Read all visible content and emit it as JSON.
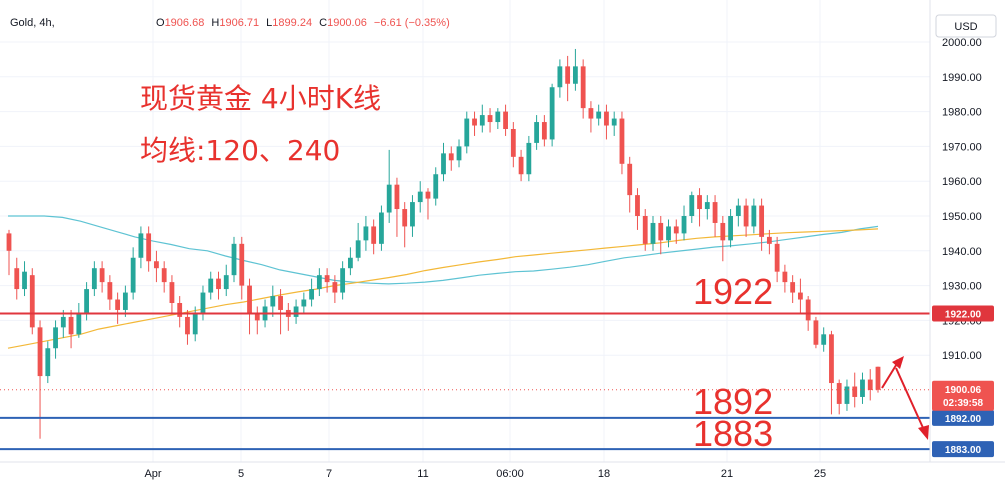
{
  "header": {
    "symbol": "Gold, 4h,",
    "open_label": "O",
    "open": "1906.68",
    "high_label": "H",
    "high": "1906.71",
    "low_label": "L",
    "low": "1899.24",
    "close_label": "C",
    "close": "1900.06",
    "change": "−6.61 (−0.35%)"
  },
  "currency_label": "USD",
  "annotations": {
    "title_line1": "现货黄金 4小时K线",
    "title_line2": "均线:120、240",
    "level_1922": "1922",
    "level_1892": "1892",
    "level_1883": "1883"
  },
  "price_tags": {
    "t1922": "1922.00",
    "t1892": "1892.00",
    "t1883": "1883.00",
    "current": "1900.06",
    "countdown": "02:39:58"
  },
  "colors": {
    "up": "#26a69a",
    "down": "#ef5350",
    "ma120": "#5ec3d3",
    "ma240": "#f3b838",
    "red_line": "#e0363d",
    "blue_line": "#2e62b5",
    "annotation": "#e8322e"
  },
  "chart_data": {
    "type": "candlestick",
    "symbol": "Gold",
    "timeframe": "4h",
    "currency": "USD",
    "y_axis": {
      "min": 1882,
      "max": 2002,
      "ticks": [
        2000,
        1990,
        1980,
        1970,
        1960,
        1950,
        1940,
        1930,
        1920,
        1910
      ]
    },
    "x_axis_labels": [
      "Apr",
      "5",
      "7",
      "11",
      "06:00",
      "18",
      "21",
      "25"
    ],
    "horizontal_levels": [
      1922,
      1892,
      1883
    ],
    "current_price": 1900.06,
    "candles": [
      [
        1945,
        1940,
        1933,
        1946
      ],
      [
        1935,
        1929,
        1926,
        1938
      ],
      [
        1929,
        1934,
        1927,
        1937
      ],
      [
        1933,
        1918,
        1916,
        1935
      ],
      [
        1918,
        1904,
        1886,
        1920
      ],
      [
        1904,
        1912,
        1902,
        1914
      ],
      [
        1912,
        1918,
        1909,
        1920
      ],
      [
        1918,
        1921,
        1915,
        1923
      ],
      [
        1921,
        1916,
        1912,
        1923
      ],
      [
        1916,
        1922,
        1915,
        1925
      ],
      [
        1922,
        1929,
        1920,
        1931
      ],
      [
        1929,
        1935,
        1927,
        1937
      ],
      [
        1935,
        1931,
        1928,
        1937
      ],
      [
        1931,
        1926,
        1923,
        1933
      ],
      [
        1926,
        1923,
        1919,
        1928
      ],
      [
        1923,
        1928,
        1921,
        1930
      ],
      [
        1928,
        1938,
        1926,
        1941
      ],
      [
        1938,
        1945,
        1935,
        1947
      ],
      [
        1945,
        1937,
        1934,
        1947
      ],
      [
        1937,
        1935,
        1931,
        1940
      ],
      [
        1935,
        1931,
        1928,
        1937
      ],
      [
        1931,
        1925,
        1922,
        1933
      ],
      [
        1925,
        1921,
        1918,
        1927
      ],
      [
        1921,
        1916,
        1913,
        1923
      ],
      [
        1916,
        1922,
        1914,
        1924
      ],
      [
        1922,
        1928,
        1920,
        1930
      ],
      [
        1928,
        1932,
        1926,
        1934
      ],
      [
        1932,
        1929,
        1926,
        1934
      ],
      [
        1929,
        1933,
        1927,
        1936
      ],
      [
        1933,
        1942,
        1931,
        1944
      ],
      [
        1942,
        1930,
        1926,
        1944
      ],
      [
        1930,
        1922,
        1916,
        1932
      ],
      [
        1922,
        1920,
        1916,
        1924
      ],
      [
        1920,
        1924,
        1918,
        1926
      ],
      [
        1924,
        1927,
        1921,
        1930
      ],
      [
        1927,
        1923,
        1916,
        1929
      ],
      [
        1923,
        1921,
        1917,
        1925
      ],
      [
        1921,
        1924,
        1919,
        1926
      ],
      [
        1924,
        1926,
        1922,
        1928
      ],
      [
        1926,
        1929,
        1924,
        1932
      ],
      [
        1929,
        1933,
        1927,
        1935
      ],
      [
        1933,
        1931,
        1928,
        1935
      ],
      [
        1931,
        1928,
        1925,
        1933
      ],
      [
        1928,
        1935,
        1926,
        1937
      ],
      [
        1935,
        1938,
        1933,
        1941
      ],
      [
        1938,
        1943,
        1937,
        1948
      ],
      [
        1943,
        1947,
        1940,
        1950
      ],
      [
        1947,
        1942,
        1939,
        1949
      ],
      [
        1942,
        1951,
        1940,
        1953
      ],
      [
        1951,
        1959,
        1948,
        1969
      ],
      [
        1959,
        1952,
        1944,
        1961
      ],
      [
        1952,
        1947,
        1941,
        1954
      ],
      [
        1947,
        1954,
        1944,
        1956
      ],
      [
        1954,
        1957,
        1951,
        1960
      ],
      [
        1957,
        1955,
        1949,
        1958
      ],
      [
        1955,
        1962,
        1953,
        1964
      ],
      [
        1962,
        1968,
        1960,
        1971
      ],
      [
        1968,
        1966,
        1963,
        1970
      ],
      [
        1966,
        1970,
        1964,
        1972
      ],
      [
        1970,
        1978,
        1968,
        1980
      ],
      [
        1978,
        1976,
        1973,
        1980
      ],
      [
        1976,
        1979,
        1974,
        1982
      ],
      [
        1979,
        1977,
        1974,
        1981
      ],
      [
        1977,
        1980,
        1975,
        1981
      ],
      [
        1980,
        1975,
        1973,
        1982
      ],
      [
        1975,
        1967,
        1964,
        1977
      ],
      [
        1967,
        1962,
        1960,
        1969
      ],
      [
        1962,
        1971,
        1960,
        1973
      ],
      [
        1971,
        1977,
        1969,
        1979
      ],
      [
        1977,
        1972,
        1970,
        1979
      ],
      [
        1972,
        1987,
        1970,
        1988
      ],
      [
        1987,
        1993,
        1984,
        1995
      ],
      [
        1993,
        1988,
        1983,
        1996
      ],
      [
        1988,
        1993,
        1986,
        1998
      ],
      [
        1993,
        1981,
        1978,
        1995
      ],
      [
        1981,
        1978,
        1974,
        1983
      ],
      [
        1978,
        1980,
        1976,
        1982
      ],
      [
        1980,
        1976,
        1972,
        1982
      ],
      [
        1976,
        1978,
        1973,
        1980
      ],
      [
        1978,
        1965,
        1962,
        1980
      ],
      [
        1965,
        1956,
        1951,
        1967
      ],
      [
        1956,
        1950,
        1946,
        1958
      ],
      [
        1950,
        1942,
        1940,
        1952
      ],
      [
        1942,
        1948,
        1940,
        1950
      ],
      [
        1948,
        1943,
        1939,
        1950
      ],
      [
        1943,
        1947,
        1941,
        1949
      ],
      [
        1947,
        1945,
        1942,
        1949
      ],
      [
        1945,
        1950,
        1943,
        1953
      ],
      [
        1950,
        1956,
        1948,
        1957
      ],
      [
        1956,
        1952,
        1947,
        1958
      ],
      [
        1952,
        1954,
        1949,
        1956
      ],
      [
        1954,
        1948,
        1944,
        1956
      ],
      [
        1948,
        1943,
        1937,
        1950
      ],
      [
        1943,
        1950,
        1941,
        1952
      ],
      [
        1950,
        1953,
        1947,
        1955
      ],
      [
        1953,
        1947,
        1944,
        1955
      ],
      [
        1947,
        1953,
        1945,
        1955
      ],
      [
        1953,
        1944,
        1940,
        1955
      ],
      [
        1944,
        1942,
        1939,
        1946
      ],
      [
        1942,
        1934,
        1931,
        1944
      ],
      [
        1934,
        1931,
        1928,
        1936
      ],
      [
        1931,
        1928,
        1925,
        1933
      ],
      [
        1928,
        1926,
        1922,
        1932
      ],
      [
        1926,
        1920,
        1917,
        1927
      ],
      [
        1920,
        1913,
        1912,
        1921
      ],
      [
        1913,
        1916,
        1911,
        1918
      ],
      [
        1916,
        1902,
        1893,
        1917
      ],
      [
        1902,
        1896,
        1893,
        1903
      ],
      [
        1896,
        1901,
        1894,
        1903
      ],
      [
        1901,
        1898,
        1895,
        1905
      ],
      [
        1898,
        1903,
        1896,
        1905
      ],
      [
        1903,
        1900,
        1897,
        1906
      ],
      [
        1906.68,
        1900.06,
        1899.24,
        1906.71
      ]
    ],
    "ma120": [
      1950,
      1950,
      1950,
      1949.6,
      1948.5,
      1947,
      1945.5,
      1944,
      1942.8,
      1941.8,
      1940.6,
      1940,
      1938.5,
      1937.2,
      1936,
      1934.5,
      1933.5,
      1932.5,
      1931.5,
      1931,
      1930.7,
      1930.5,
      1930.7,
      1931,
      1931.5,
      1932.2,
      1933,
      1933.5,
      1934,
      1934.2,
      1934.7,
      1935.3,
      1936,
      1937,
      1938,
      1938.6,
      1939.3,
      1939.9,
      1940.5,
      1941.1,
      1941.5,
      1942,
      1942.6,
      1943.3,
      1944,
      1944.7,
      1945.3,
      1946.3,
      1947
    ],
    "ma240": [
      1912,
      1913,
      1914,
      1915,
      1916,
      1917.5,
      1918.5,
      1919.5,
      1920.5,
      1921.5,
      1922.5,
      1923.5,
      1924.5,
      1925.3,
      1926.3,
      1927.3,
      1928.2,
      1929,
      1930,
      1930.7,
      1931.5,
      1932.3,
      1933.2,
      1934.3,
      1935.2,
      1936,
      1936.8,
      1937.5,
      1938.3,
      1938.8,
      1939.3,
      1939.8,
      1940.3,
      1940.8,
      1941.3,
      1941.8,
      1942.3,
      1943,
      1943.6,
      1944,
      1944.3,
      1944.6,
      1944.9,
      1945.2,
      1945.4,
      1945.6,
      1945.8,
      1946,
      1946.3
    ]
  }
}
